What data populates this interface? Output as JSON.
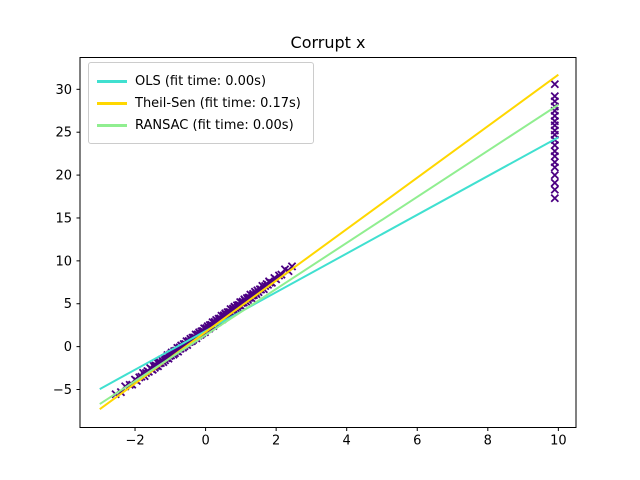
{
  "figure": {
    "background": "#ffffff"
  },
  "chart_data": {
    "type": "scatter",
    "title": "Corrupt x",
    "xlabel": "",
    "ylabel": "",
    "grid": false,
    "legend_position": "upper left",
    "xlim": [
      -3.56,
      10.5
    ],
    "ylim": [
      -9.43,
      33.71
    ],
    "xticks": [
      -2,
      0,
      2,
      4,
      6,
      8,
      10
    ],
    "yticks": [
      -5,
      0,
      5,
      10,
      15,
      20,
      25,
      30
    ],
    "axis_color": "#000000",
    "series": [
      {
        "name": "OLS (fit time: 0.00s)",
        "color": "#40E0D0",
        "linewidth": 2,
        "x": [
          -3,
          10
        ],
        "y": [
          -4.95,
          24.4
        ]
      },
      {
        "name": "Theil-Sen (fit time: 0.17s)",
        "color": "#FFD700",
        "linewidth": 2,
        "x": [
          -3,
          10
        ],
        "y": [
          -7.3,
          31.7
        ]
      },
      {
        "name": "RANSAC (fit time: 0.00s)",
        "color": "#90EE90",
        "linewidth": 2,
        "x": [
          -3,
          10
        ],
        "y": [
          -6.7,
          28.2
        ]
      }
    ],
    "scatter": {
      "marker": "x",
      "color": "#4B0082",
      "points": [
        [
          -2.55,
          -5.55
        ],
        [
          -2.4,
          -5.3
        ],
        [
          -2.28,
          -4.64
        ],
        [
          -2.15,
          -4.45
        ],
        [
          -2.08,
          -4.44
        ],
        [
          -2.0,
          -3.85
        ],
        [
          -1.95,
          -4.0
        ],
        [
          -1.88,
          -3.59
        ],
        [
          -1.82,
          -3.51
        ],
        [
          -1.77,
          -3.06
        ],
        [
          -1.73,
          -3.44
        ],
        [
          -1.69,
          -3.07
        ],
        [
          -1.65,
          -2.85
        ],
        [
          -1.61,
          -2.93
        ],
        [
          -1.57,
          -2.51
        ],
        [
          -1.54,
          -2.62
        ],
        [
          -1.5,
          -2.7
        ],
        [
          -1.47,
          -2.26
        ],
        [
          -1.44,
          -2.47
        ],
        [
          -1.42,
          -2.21
        ],
        [
          -1.4,
          -2.25
        ],
        [
          -1.37,
          -1.86
        ],
        [
          -1.35,
          -2.3
        ],
        [
          -1.32,
          -1.96
        ],
        [
          -1.3,
          -1.8
        ],
        [
          -1.27,
          -1.91
        ],
        [
          -1.25,
          -1.55
        ],
        [
          -1.22,
          -1.66
        ],
        [
          -1.2,
          -1.8
        ],
        [
          -1.17,
          -1.36
        ],
        [
          -1.15,
          -1.6
        ],
        [
          -1.12,
          -1.31
        ],
        [
          -1.1,
          -1.35
        ],
        [
          -1.08,
          -0.99
        ],
        [
          -1.05,
          -1.4
        ],
        [
          -1.03,
          -1.09
        ],
        [
          -1.0,
          -0.9
        ],
        [
          -0.98,
          -1.04
        ],
        [
          -0.96,
          -0.68
        ],
        [
          -0.93,
          -0.79
        ],
        [
          -0.91,
          -0.93
        ],
        [
          -0.89,
          -0.52
        ],
        [
          -0.87,
          -0.76
        ],
        [
          -0.84,
          -0.47
        ],
        [
          -0.82,
          -0.51
        ],
        [
          -0.8,
          -0.15
        ],
        [
          -0.78,
          -0.59
        ],
        [
          -0.75,
          -0.25
        ],
        [
          -0.73,
          -0.09
        ],
        [
          -0.71,
          -0.23
        ],
        [
          -0.69,
          0.13
        ],
        [
          -0.66,
          0.02
        ],
        [
          -0.64,
          -0.12
        ],
        [
          -0.62,
          0.29
        ],
        [
          -0.6,
          0.05
        ],
        [
          -0.58,
          0.31
        ],
        [
          -0.56,
          0.27
        ],
        [
          -0.54,
          0.63
        ],
        [
          -0.52,
          0.19
        ],
        [
          -0.5,
          0.5
        ],
        [
          -0.48,
          0.66
        ],
        [
          -0.45,
          0.55
        ],
        [
          -0.43,
          0.91
        ],
        [
          -0.41,
          0.77
        ],
        [
          -0.39,
          0.63
        ],
        [
          -0.37,
          1.04
        ],
        [
          -0.35,
          0.8
        ],
        [
          -0.33,
          1.06
        ],
        [
          -0.3,
          1.05
        ],
        [
          -0.28,
          1.41
        ],
        [
          -0.26,
          0.97
        ],
        [
          -0.24,
          1.28
        ],
        [
          -0.22,
          1.44
        ],
        [
          -0.2,
          1.3
        ],
        [
          -0.18,
          1.66
        ],
        [
          -0.16,
          1.52
        ],
        [
          -0.14,
          1.38
        ],
        [
          -0.12,
          1.79
        ],
        [
          -0.1,
          1.55
        ],
        [
          -0.08,
          1.81
        ],
        [
          -0.06,
          1.77
        ],
        [
          -0.04,
          2.13
        ],
        [
          -0.02,
          1.69
        ],
        [
          0.0,
          2.0
        ],
        [
          0.02,
          2.16
        ],
        [
          0.04,
          2.02
        ],
        [
          0.06,
          2.38
        ],
        [
          0.08,
          2.24
        ],
        [
          0.1,
          2.1
        ],
        [
          0.12,
          2.51
        ],
        [
          0.14,
          2.27
        ],
        [
          0.16,
          2.53
        ],
        [
          0.18,
          2.49
        ],
        [
          0.2,
          2.85
        ],
        [
          0.22,
          2.41
        ],
        [
          0.24,
          2.72
        ],
        [
          0.26,
          2.88
        ],
        [
          0.28,
          2.74
        ],
        [
          0.3,
          3.1
        ],
        [
          0.33,
          2.99
        ],
        [
          0.35,
          2.85
        ],
        [
          0.37,
          3.26
        ],
        [
          0.39,
          3.02
        ],
        [
          0.41,
          3.28
        ],
        [
          0.43,
          3.24
        ],
        [
          0.45,
          3.6
        ],
        [
          0.48,
          3.19
        ],
        [
          0.5,
          3.5
        ],
        [
          0.52,
          3.66
        ],
        [
          0.54,
          3.52
        ],
        [
          0.56,
          3.88
        ],
        [
          0.58,
          3.74
        ],
        [
          0.6,
          3.6
        ],
        [
          0.62,
          4.01
        ],
        [
          0.64,
          3.77
        ],
        [
          0.66,
          4.03
        ],
        [
          0.69,
          4.02
        ],
        [
          0.71,
          4.38
        ],
        [
          0.73,
          3.94
        ],
        [
          0.75,
          4.25
        ],
        [
          0.78,
          4.44
        ],
        [
          0.8,
          4.3
        ],
        [
          0.82,
          4.66
        ],
        [
          0.84,
          4.52
        ],
        [
          0.87,
          4.41
        ],
        [
          0.89,
          4.82
        ],
        [
          0.91,
          4.58
        ],
        [
          0.93,
          4.84
        ],
        [
          0.96,
          4.83
        ],
        [
          0.98,
          5.19
        ],
        [
          1.0,
          4.75
        ],
        [
          1.03,
          5.09
        ],
        [
          1.05,
          5.25
        ],
        [
          1.08,
          5.14
        ],
        [
          1.1,
          5.5
        ],
        [
          1.12,
          5.36
        ],
        [
          1.15,
          5.25
        ],
        [
          1.17,
          5.66
        ],
        [
          1.2,
          5.45
        ],
        [
          1.22,
          5.71
        ],
        [
          1.25,
          5.7
        ],
        [
          1.27,
          6.06
        ],
        [
          1.3,
          5.65
        ],
        [
          1.32,
          5.96
        ],
        [
          1.35,
          6.15
        ],
        [
          1.37,
          6.01
        ],
        [
          1.4,
          6.4
        ],
        [
          1.42,
          6.26
        ],
        [
          1.44,
          6.12
        ],
        [
          1.47,
          6.56
        ],
        [
          1.5,
          6.35
        ],
        [
          1.54,
          6.67
        ],
        [
          1.57,
          6.66
        ],
        [
          1.61,
          7.08
        ],
        [
          1.65,
          6.7
        ],
        [
          1.69,
          7.07
        ],
        [
          1.73,
          7.29
        ],
        [
          1.77,
          7.21
        ],
        [
          1.8,
          7.6
        ],
        [
          1.82,
          7.46
        ],
        [
          1.88,
          7.44
        ],
        [
          1.95,
          8.0
        ],
        [
          2.0,
          7.85
        ],
        [
          2.08,
          8.29
        ],
        [
          2.15,
          8.4
        ],
        [
          2.25,
          9.0
        ],
        [
          2.35,
          8.8
        ],
        [
          2.45,
          9.35
        ],
        [
          9.9,
          30.6
        ],
        [
          9.9,
          29.2
        ],
        [
          9.9,
          28.6
        ],
        [
          9.9,
          28.0
        ],
        [
          9.9,
          27.5
        ],
        [
          9.9,
          26.9
        ],
        [
          9.9,
          26.3
        ],
        [
          9.9,
          25.8
        ],
        [
          9.9,
          25.2
        ],
        [
          9.9,
          24.7
        ],
        [
          9.9,
          24.1
        ],
        [
          9.9,
          23.5
        ],
        [
          9.9,
          22.8
        ],
        [
          9.9,
          22.2
        ],
        [
          9.9,
          21.5
        ],
        [
          9.9,
          20.9
        ],
        [
          9.9,
          20.0
        ],
        [
          9.9,
          19.1
        ],
        [
          9.9,
          18.3
        ],
        [
          9.9,
          17.3
        ]
      ]
    }
  }
}
